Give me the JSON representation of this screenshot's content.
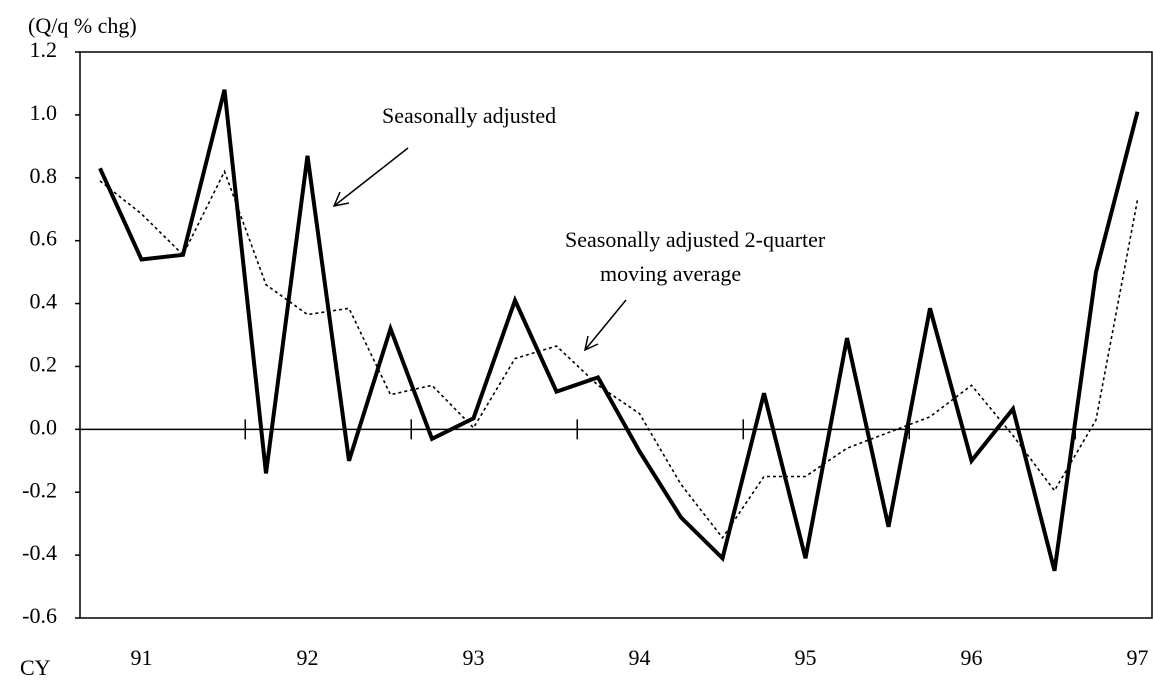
{
  "chart_data": {
    "type": "line",
    "y_label": "(Q/q % chg)",
    "x_label": "CY",
    "categories": [
      null,
      "91",
      null,
      null,
      null,
      "92",
      null,
      null,
      null,
      "93",
      null,
      null,
      null,
      "94",
      null,
      null,
      null,
      "95",
      null,
      null,
      null,
      "96",
      null,
      null,
      null,
      "97"
    ],
    "series": [
      {
        "name": "Seasonally adjusted",
        "color": "#000000",
        "line_style": "solid",
        "values": [
          0.83,
          0.54,
          0.555,
          1.08,
          -0.14,
          0.87,
          -0.1,
          0.32,
          -0.03,
          0.035,
          0.41,
          0.12,
          0.165,
          -0.07,
          -0.28,
          -0.41,
          0.115,
          -0.41,
          0.29,
          -0.31,
          0.385,
          -0.1,
          0.065,
          -0.45,
          0.5,
          1.01
        ]
      },
      {
        "name": "Seasonally adjusted 2-quarter moving average",
        "color": "#000000",
        "line_style": "dotted",
        "values": [
          0.79,
          0.685,
          0.555,
          0.82,
          0.46,
          0.365,
          0.385,
          0.11,
          0.14,
          0.005,
          0.225,
          0.265,
          0.14,
          0.05,
          -0.175,
          -0.345,
          -0.15,
          -0.15,
          -0.06,
          -0.01,
          0.04,
          0.14,
          -0.02,
          -0.195,
          0.03,
          0.73
        ]
      }
    ],
    "annotations": [
      {
        "lines": [
          "Seasonally adjusted"
        ]
      },
      {
        "lines": [
          "Seasonally adjusted 2-quarter",
          "moving average"
        ]
      }
    ],
    "ylim": [
      -0.6,
      1.2
    ],
    "yticks": [
      {
        "value": -0.6,
        "label": "-0.6"
      },
      {
        "value": -0.4,
        "label": "-0.4"
      },
      {
        "value": -0.2,
        "label": "-0.2"
      },
      {
        "value": 0,
        "label": "0.0"
      },
      {
        "value": 0.2,
        "label": "0.2"
      },
      {
        "value": 0.4,
        "label": "0.4"
      },
      {
        "value": 0.6,
        "label": "0.6"
      },
      {
        "value": 0.8,
        "label": "0.8"
      },
      {
        "value": 1.0,
        "label": "1.0"
      },
      {
        "value": 1.2,
        "label": "1.2"
      }
    ],
    "grid": false
  }
}
